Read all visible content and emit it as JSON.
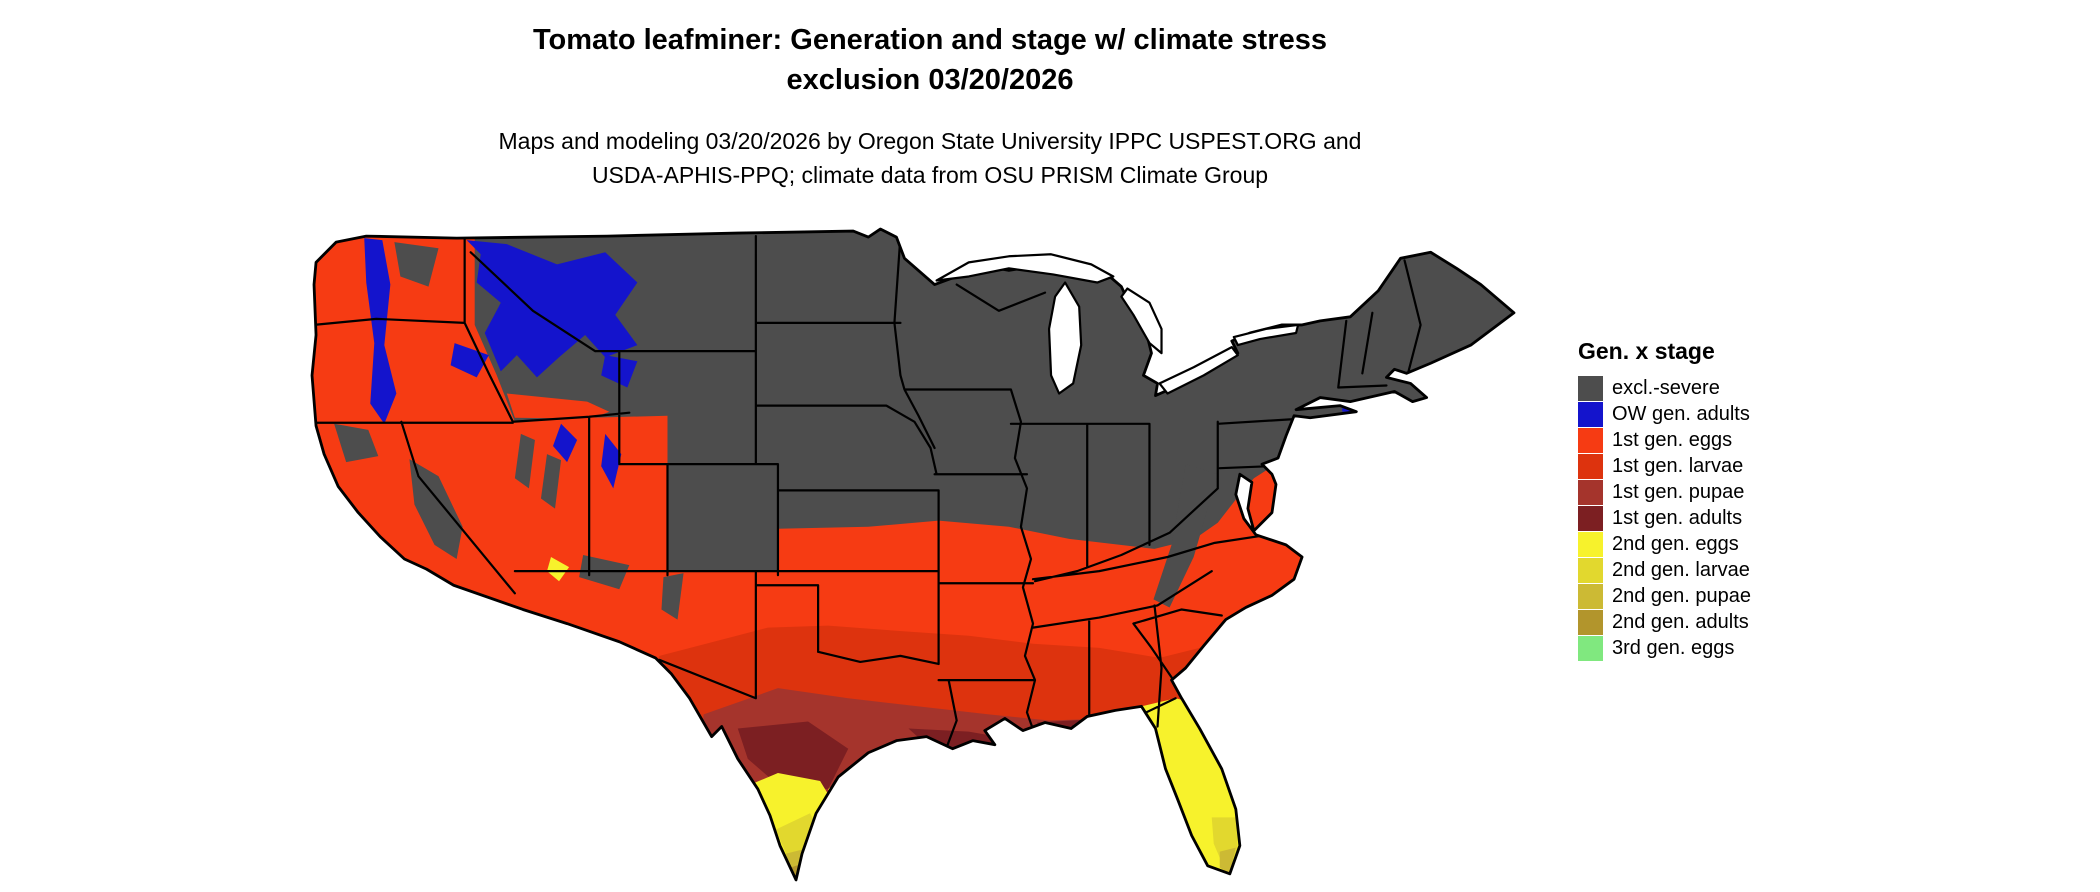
{
  "title": {
    "line1": "Tomato leafminer: Generation and stage w/ climate stress",
    "line2": "exclusion 03/20/2026"
  },
  "subtitle": {
    "line1": "Maps and modeling 03/20/2026 by Oregon State University IPPC USPEST.ORG and",
    "line2": "USDA-APHIS-PPQ; climate data from OSU PRISM Climate Group"
  },
  "legend": {
    "title": "Gen. x stage",
    "items": [
      {
        "key": "excl",
        "label": "excl.-severe",
        "color": "#4d4d4d"
      },
      {
        "key": "ow-adults",
        "label": "OW gen. adults",
        "color": "#1414cc"
      },
      {
        "key": "g1-eggs",
        "label": "1st gen. eggs",
        "color": "#f63b13"
      },
      {
        "key": "g1-larvae",
        "label": "1st gen. larvae",
        "color": "#dd330e"
      },
      {
        "key": "g1-pupae",
        "label": "1st gen. pupae",
        "color": "#a5342c"
      },
      {
        "key": "g1-adults",
        "label": "1st gen. adults",
        "color": "#7c1f22"
      },
      {
        "key": "g2-eggs",
        "label": "2nd gen. eggs",
        "color": "#f7f22c"
      },
      {
        "key": "g2-larvae",
        "label": "2nd gen. larvae",
        "color": "#e2d82e"
      },
      {
        "key": "g2-pupae",
        "label": "2nd gen. pupae",
        "color": "#ccba34"
      },
      {
        "key": "g2-adults",
        "label": "2nd gen. adults",
        "color": "#b2952c"
      },
      {
        "key": "g3-eggs",
        "label": "3rd gen. eggs",
        "color": "#80e87f"
      }
    ]
  },
  "map": {
    "region": "Contiguous United States",
    "date_shown": "03/20/2026"
  }
}
